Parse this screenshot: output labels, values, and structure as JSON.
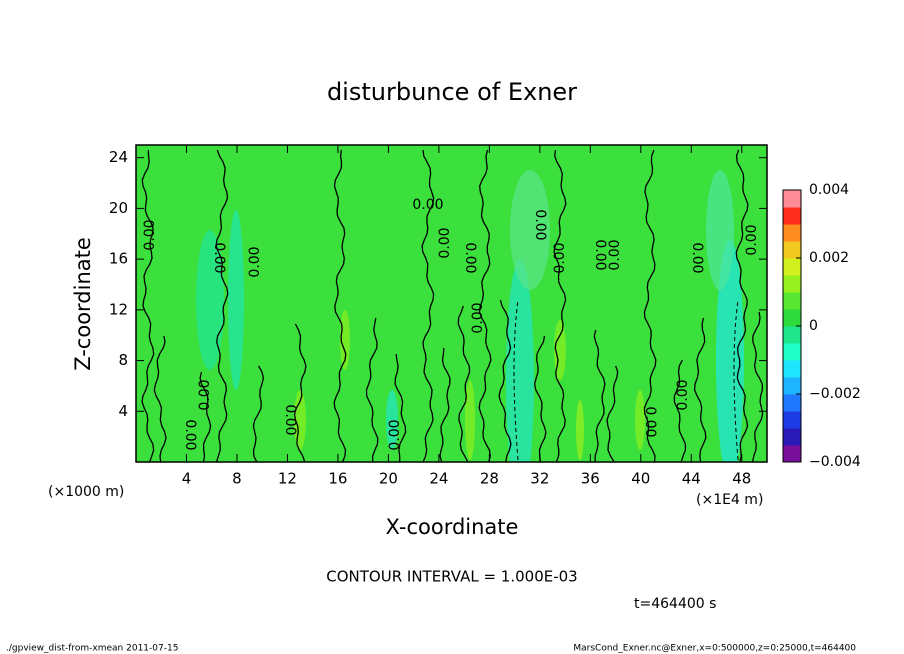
{
  "chart_data": {
    "type": "contour",
    "title": "disturbunce of Exner",
    "x_label": "X-coordinate",
    "y_label": "Z-coordinate",
    "x_unit": "(×1E4 m)",
    "y_unit": "(×1000 m)",
    "xlim": [
      0,
      50
    ],
    "xticks": [
      4,
      8,
      12,
      16,
      20,
      24,
      28,
      32,
      36,
      40,
      44,
      48
    ],
    "ylim": [
      0,
      25
    ],
    "yticks": [
      4,
      8,
      12,
      16,
      20,
      24
    ],
    "contour_labels": [
      "0.00",
      "0.00",
      "0.00",
      "0.00",
      "0.00",
      "0.00",
      "0.00",
      "0.00",
      "0.00",
      "0.00",
      "0.00",
      "0.00",
      "0.00",
      "0.00",
      "0.00",
      "0.00",
      "0.00",
      "0.00",
      "0.00"
    ],
    "contour_interval": "CONTOUR INTERVAL = 1.000E-03",
    "time_label": "t=464400 s",
    "colorbar": {
      "lim": [
        -0.004,
        0.004
      ],
      "ticks": [
        {
          "value": -0.004,
          "label": "−0.004"
        },
        {
          "value": -0.002,
          "label": "−0.002"
        },
        0,
        0.002,
        0.004
      ],
      "colors": [
        "#7a0f9a",
        "#2a1ab8",
        "#1e3ce6",
        "#1f78ff",
        "#1fb4ff",
        "#1fe6ff",
        "#1fffc8",
        "#1fe68c",
        "#2ddc3c",
        "#5ae632",
        "#96f01e",
        "#d2f01e",
        "#f0c81e",
        "#ff8c1e",
        "#ff2d1e",
        "#ff8c96"
      ]
    },
    "footer_left": "./gpview_dist-from-xmean  2011-07-15",
    "footer_right": "MarsCond_Exner.nc@Exner,x=0:500000,z=0:25000,t=464400"
  }
}
